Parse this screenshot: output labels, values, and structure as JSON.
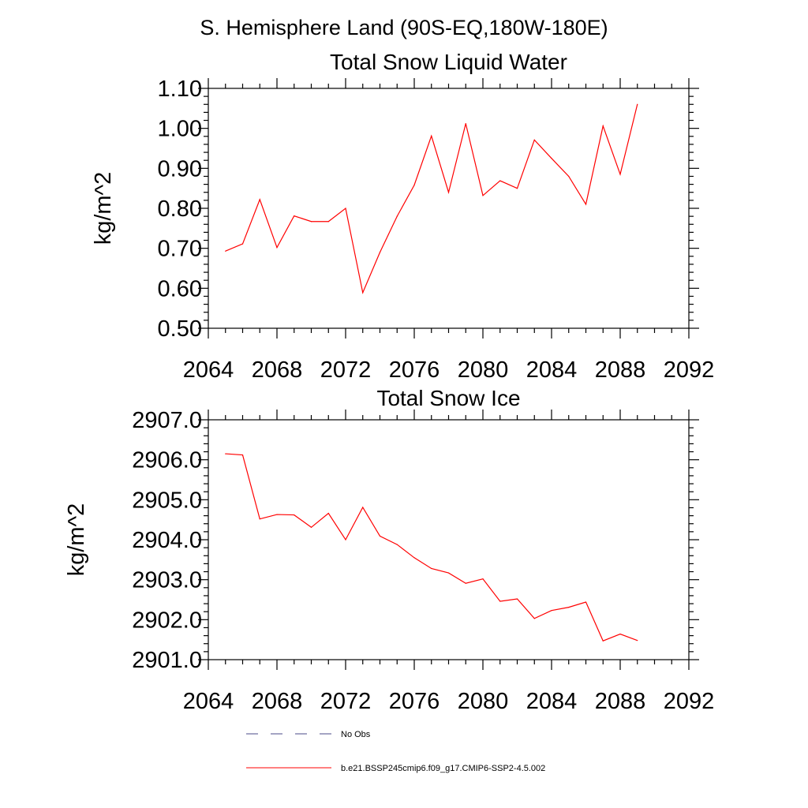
{
  "figure": {
    "title": "S. Hemisphere Land (90S-EQ,180W-180E)"
  },
  "chart_data": [
    {
      "type": "line",
      "title": "Total Snow Liquid Water",
      "xlabel": "",
      "ylabel": "kg/m^2",
      "xlim": [
        2064,
        2092
      ],
      "ylim": [
        0.5,
        1.1
      ],
      "xticks": [
        2064,
        2068,
        2072,
        2076,
        2080,
        2084,
        2088,
        2092
      ],
      "yticks": [
        0.5,
        0.6,
        0.7,
        0.8,
        0.9,
        1.0,
        1.1
      ],
      "ytick_labels": [
        "0.50",
        "0.60",
        "0.70",
        "0.80",
        "0.90",
        "1.00",
        "1.10"
      ],
      "grid": false,
      "series": [
        {
          "color": "#ff0000",
          "x": [
            2065,
            2066,
            2067,
            2068,
            2069,
            2070,
            2071,
            2072,
            2073,
            2074,
            2075,
            2076,
            2077,
            2078,
            2079,
            2080,
            2081,
            2082,
            2083,
            2084,
            2085,
            2086,
            2087,
            2088,
            2089
          ],
          "y": [
            0.693,
            0.711,
            0.822,
            0.702,
            0.781,
            0.767,
            0.767,
            0.8,
            0.589,
            0.69,
            0.78,
            0.858,
            0.981,
            0.84,
            1.012,
            0.832,
            0.869,
            0.85,
            0.971,
            0.925,
            0.88,
            0.81,
            1.006,
            0.885,
            1.06
          ]
        }
      ]
    },
    {
      "type": "line",
      "title": "Total Snow Ice",
      "xlabel": "",
      "ylabel": "kg/m^2",
      "xlim": [
        2064,
        2092
      ],
      "ylim": [
        2901.0,
        2907.0
      ],
      "xticks": [
        2064,
        2068,
        2072,
        2076,
        2080,
        2084,
        2088,
        2092
      ],
      "yticks": [
        2901.0,
        2902.0,
        2903.0,
        2904.0,
        2905.0,
        2906.0,
        2907.0
      ],
      "ytick_labels": [
        "2901.0",
        "2902.0",
        "2903.0",
        "2904.0",
        "2905.0",
        "2906.0",
        "2907.0"
      ],
      "grid": false,
      "series": [
        {
          "color": "#ff0000",
          "x": [
            2065,
            2066,
            2067,
            2068,
            2069,
            2070,
            2071,
            2072,
            2073,
            2074,
            2075,
            2076,
            2077,
            2078,
            2079,
            2080,
            2081,
            2082,
            2083,
            2084,
            2085,
            2086,
            2087,
            2088,
            2089
          ],
          "y": [
            2906.15,
            2906.12,
            2904.52,
            2904.63,
            2904.62,
            2904.31,
            2904.66,
            2904.0,
            2904.81,
            2904.09,
            2903.88,
            2903.55,
            2903.28,
            2903.17,
            2902.91,
            2903.02,
            2902.46,
            2902.52,
            2902.03,
            2902.23,
            2902.31,
            2902.44,
            2901.47,
            2901.64,
            2901.48
          ]
        }
      ]
    }
  ],
  "legend": {
    "placement": "bottom",
    "entries": [
      {
        "label": "No Obs",
        "style": "dashed",
        "color": "#4a4a8a"
      },
      {
        "label": "b.e21.BSSP245cmip6.f09_g17.CMIP6-SSP2-4.5.002",
        "style": "solid",
        "color": "#ff0000"
      }
    ]
  }
}
